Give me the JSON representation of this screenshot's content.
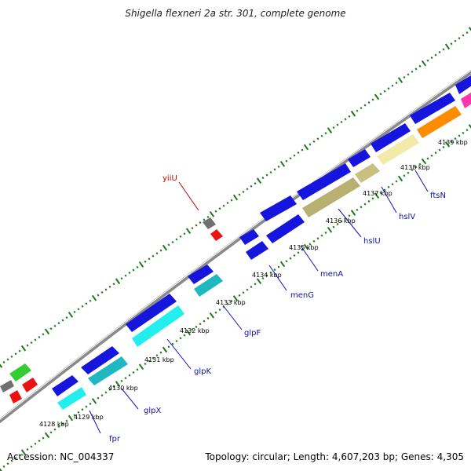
{
  "title": "Shigella flexneri 2a str. 301, complete genome",
  "accession": "Accession: NC_004337",
  "topology": "Topology: circular; Length: 4,607,203 bp; Genes: 4,305",
  "colors": {
    "backbone": "#888888",
    "tick_major": "#1a7a1a",
    "tick_dot": "#3a9a3a",
    "label_line": "#1010cc",
    "label_text": "#1010aa",
    "red_label": "#cc0000"
  },
  "kbp_labels": [
    "4128 kbp",
    "4129 kbp",
    "4130 kbp",
    "4131 kbp",
    "4132 kbp",
    "4133 kbp",
    "4134 kbp",
    "4135 kbp",
    "4136 kbp",
    "4137 kbp",
    "4138 kbp",
    "4139 kbp"
  ],
  "gene_labels": [
    {
      "name": "yiiU",
      "color": "red"
    },
    {
      "name": "fpr",
      "color": "blue"
    },
    {
      "name": "glpX",
      "color": "blue"
    },
    {
      "name": "glpK",
      "color": "blue"
    },
    {
      "name": "glpF",
      "color": "blue"
    },
    {
      "name": "menG",
      "color": "blue"
    },
    {
      "name": "menA",
      "color": "blue"
    },
    {
      "name": "hslU",
      "color": "blue"
    },
    {
      "name": "hslV",
      "color": "blue"
    },
    {
      "name": "ftsN",
      "color": "blue"
    }
  ]
}
